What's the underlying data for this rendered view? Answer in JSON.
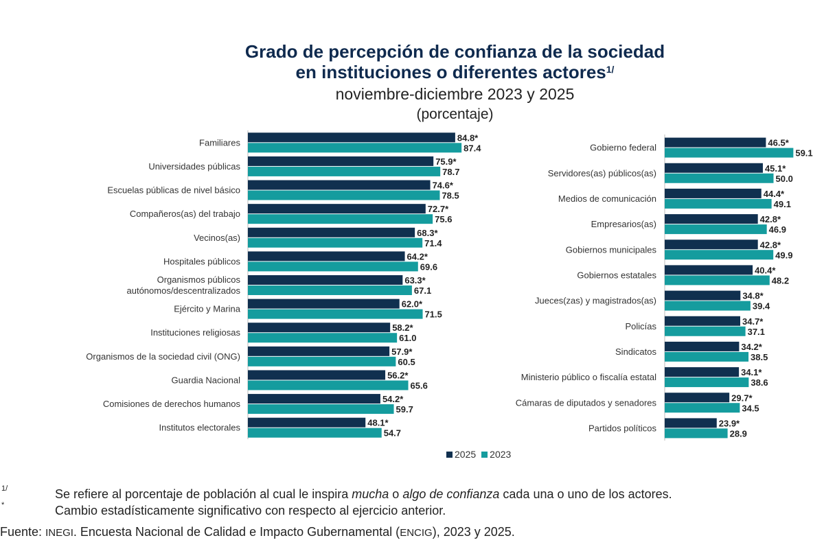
{
  "header": {
    "title_line1": "Grado de percepción de confianza de la sociedad",
    "title_line2": "en instituciones o diferentes actores",
    "title_footnote": "1/",
    "subtitle": "noviembre-diciembre 2023 y 2025",
    "unit": "(porcentaje)"
  },
  "colors": {
    "s2025": "#10304f",
    "s2023": "#159c9e"
  },
  "legend": {
    "s2025": "2025",
    "s2023": "2023"
  },
  "chart_data": [
    {
      "type": "bar",
      "orientation": "horizontal",
      "categories": [
        "Familiares",
        "Universidades públicas",
        "Escuelas públicas de nivel básico",
        "Compañeros(as) del trabajo",
        "Vecinos(as)",
        "Hospitales públicos",
        "Organismos públicos|autónomos/descentralizados",
        "Ejército y Marina",
        "Instituciones religiosas",
        "Organismos de la sociedad civil (ONG)",
        "Guardia Nacional",
        "Comisiones de derechos humanos",
        "Institutos electorales"
      ],
      "series": [
        {
          "name": "2025",
          "values": [
            84.8,
            75.9,
            74.6,
            72.7,
            68.3,
            64.2,
            63.3,
            62.0,
            58.2,
            57.9,
            56.2,
            54.2,
            48.1
          ],
          "labels": [
            "84.8*",
            "75.9*",
            "74.6*",
            "72.7*",
            "68.3*",
            "64.2*",
            "63.3*",
            "62.0*",
            "58.2*",
            "57.9*",
            "56.2*",
            "54.2*",
            "48.1*"
          ]
        },
        {
          "name": "2023",
          "values": [
            87.4,
            78.7,
            78.5,
            75.6,
            71.4,
            69.6,
            67.1,
            71.5,
            61.0,
            60.5,
            65.6,
            59.7,
            54.7
          ],
          "labels": [
            "87.4",
            "78.7",
            "78.5",
            "75.6",
            "71.4",
            "69.6",
            "67.1",
            "71.5",
            "61.0",
            "60.5",
            "65.6",
            "59.7",
            "54.7"
          ]
        }
      ]
    },
    {
      "type": "bar",
      "orientation": "horizontal",
      "categories": [
        "Gobierno federal",
        "Servidores(as) públicos(as)",
        "Medios de comunicación",
        "Empresarios(as)",
        "Gobiernos municipales",
        "Gobiernos estatales",
        "Jueces(zas) y magistrados(as)",
        "Policías",
        "Sindicatos",
        "Ministerio público o fiscalía estatal",
        "Cámaras de diputados y senadores",
        "Partidos políticos"
      ],
      "series": [
        {
          "name": "2025",
          "values": [
            46.5,
            45.1,
            44.4,
            42.8,
            42.8,
            40.4,
            34.8,
            34.7,
            34.2,
            34.1,
            29.7,
            23.9
          ],
          "labels": [
            "46.5*",
            "45.1*",
            "44.4*",
            "42.8*",
            "42.8*",
            "40.4*",
            "34.8*",
            "34.7*",
            "34.2*",
            "34.1*",
            "29.7*",
            "23.9*"
          ]
        },
        {
          "name": "2023",
          "values": [
            59.1,
            50.0,
            49.1,
            46.9,
            49.9,
            48.2,
            39.4,
            37.1,
            38.5,
            38.6,
            34.5,
            28.9
          ],
          "labels": [
            "59.1",
            "50.0",
            "49.1",
            "46.9",
            "49.9",
            "48.2",
            "39.4",
            "37.1",
            "38.5",
            "38.6",
            "34.5",
            "28.9"
          ]
        }
      ]
    }
  ],
  "notes": {
    "n1_mark": "1/",
    "n1_a": "Se refiere al porcentaje de población al cual le inspira ",
    "n1_em1": "mucha",
    "n1_b": " o ",
    "n1_em2": "algo de confianza",
    "n1_c": " cada una o uno de los actores.",
    "n2_mark": "*",
    "n2_text": "Cambio estadísticamente significativo con respecto al ejercicio anterior.",
    "source_label": "Fuente:",
    "source_inegi": "INEGI",
    "source_a": ". Encuesta Nacional de Calidad e Impacto Gubernamental (",
    "source_encig": "ENCIG",
    "source_b": "), 2023 y 2025."
  }
}
